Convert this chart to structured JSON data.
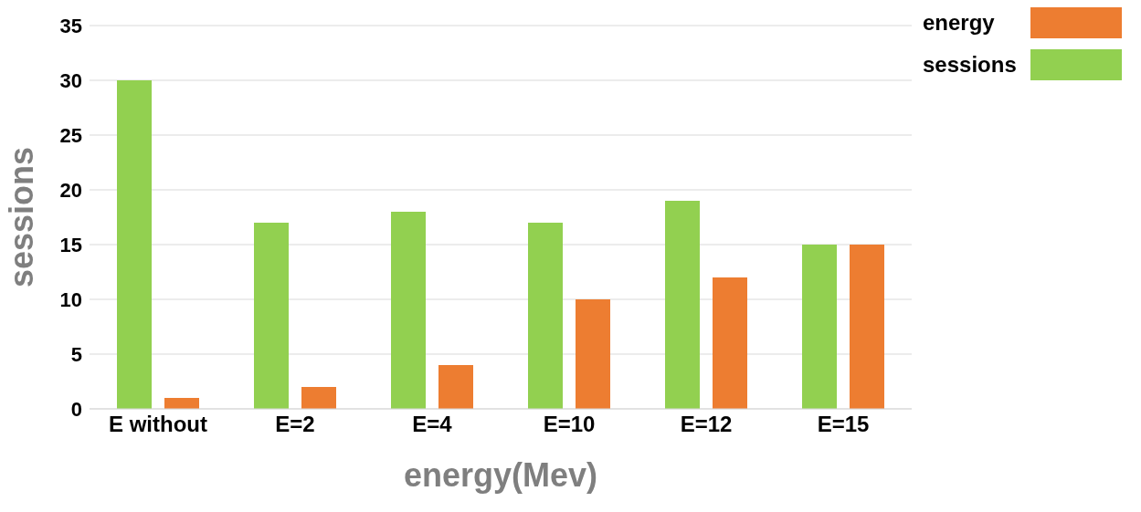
{
  "chart_data": {
    "type": "bar",
    "xlabel": "energy(Mev)",
    "ylabel": "sessions",
    "categories": [
      "E without",
      "E=2",
      "E=4",
      "E=10",
      "E=12",
      "E=15"
    ],
    "series": [
      {
        "name": "sessions",
        "color": "#92d050",
        "values": [
          30,
          17,
          18,
          17,
          19,
          15
        ]
      },
      {
        "name": "energy",
        "color": "#ed7d31",
        "values": [
          1,
          2,
          4,
          10,
          12,
          15
        ]
      }
    ],
    "ylim": [
      0,
      35
    ],
    "yticks": [
      0,
      5,
      10,
      15,
      20,
      25,
      30,
      35
    ],
    "grid": "y",
    "legend": "top right"
  }
}
